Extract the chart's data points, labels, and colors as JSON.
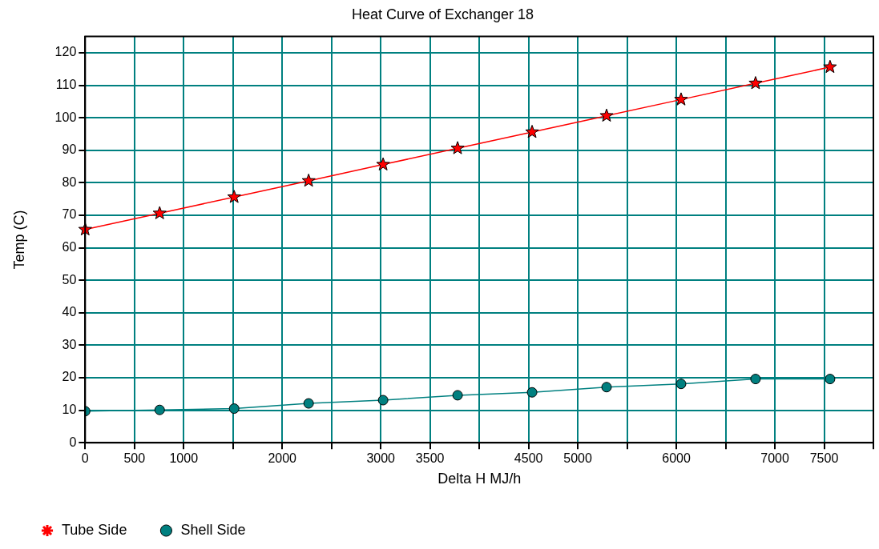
{
  "chart_data": {
    "type": "line",
    "title": "Heat Curve of Exchanger 18",
    "xlabel": "Delta H MJ/h",
    "ylabel": "Temp (C)",
    "x": [
      0,
      756,
      1512,
      2268,
      3024,
      3780,
      4536,
      5292,
      6048,
      6804,
      7560
    ],
    "series": [
      {
        "name": "Tube Side",
        "color": "#ff0000",
        "marker": "star",
        "values": [
          65.6,
          70.6,
          75.6,
          80.6,
          85.6,
          90.6,
          95.6,
          100.6,
          105.6,
          110.6,
          115.6
        ]
      },
      {
        "name": "Shell Side",
        "color": "#008080",
        "marker": "circle",
        "values": [
          9.7,
          10.1,
          10.5,
          12.1,
          13.1,
          14.6,
          15.5,
          17.1,
          18.1,
          19.6,
          19.6
        ]
      }
    ],
    "xlim": [
      0,
      8000
    ],
    "xticks": [
      0,
      500,
      1000,
      {
        "value": 1500,
        "label": null
      },
      2000,
      {
        "value": 2500,
        "label": null
      },
      3000,
      3500,
      {
        "value": 4000,
        "label": null
      },
      4500,
      5000,
      {
        "value": 5500,
        "label": null
      },
      6000,
      {
        "value": 6500,
        "label": null
      },
      7000,
      7500,
      {
        "value": 8000,
        "label": null
      }
    ],
    "ylim": [
      0,
      125
    ],
    "yticks": [
      0,
      10,
      20,
      30,
      40,
      50,
      60,
      70,
      80,
      90,
      100,
      110,
      120
    ],
    "grid": true,
    "legend": "bottom left",
    "line_style": "solid"
  }
}
